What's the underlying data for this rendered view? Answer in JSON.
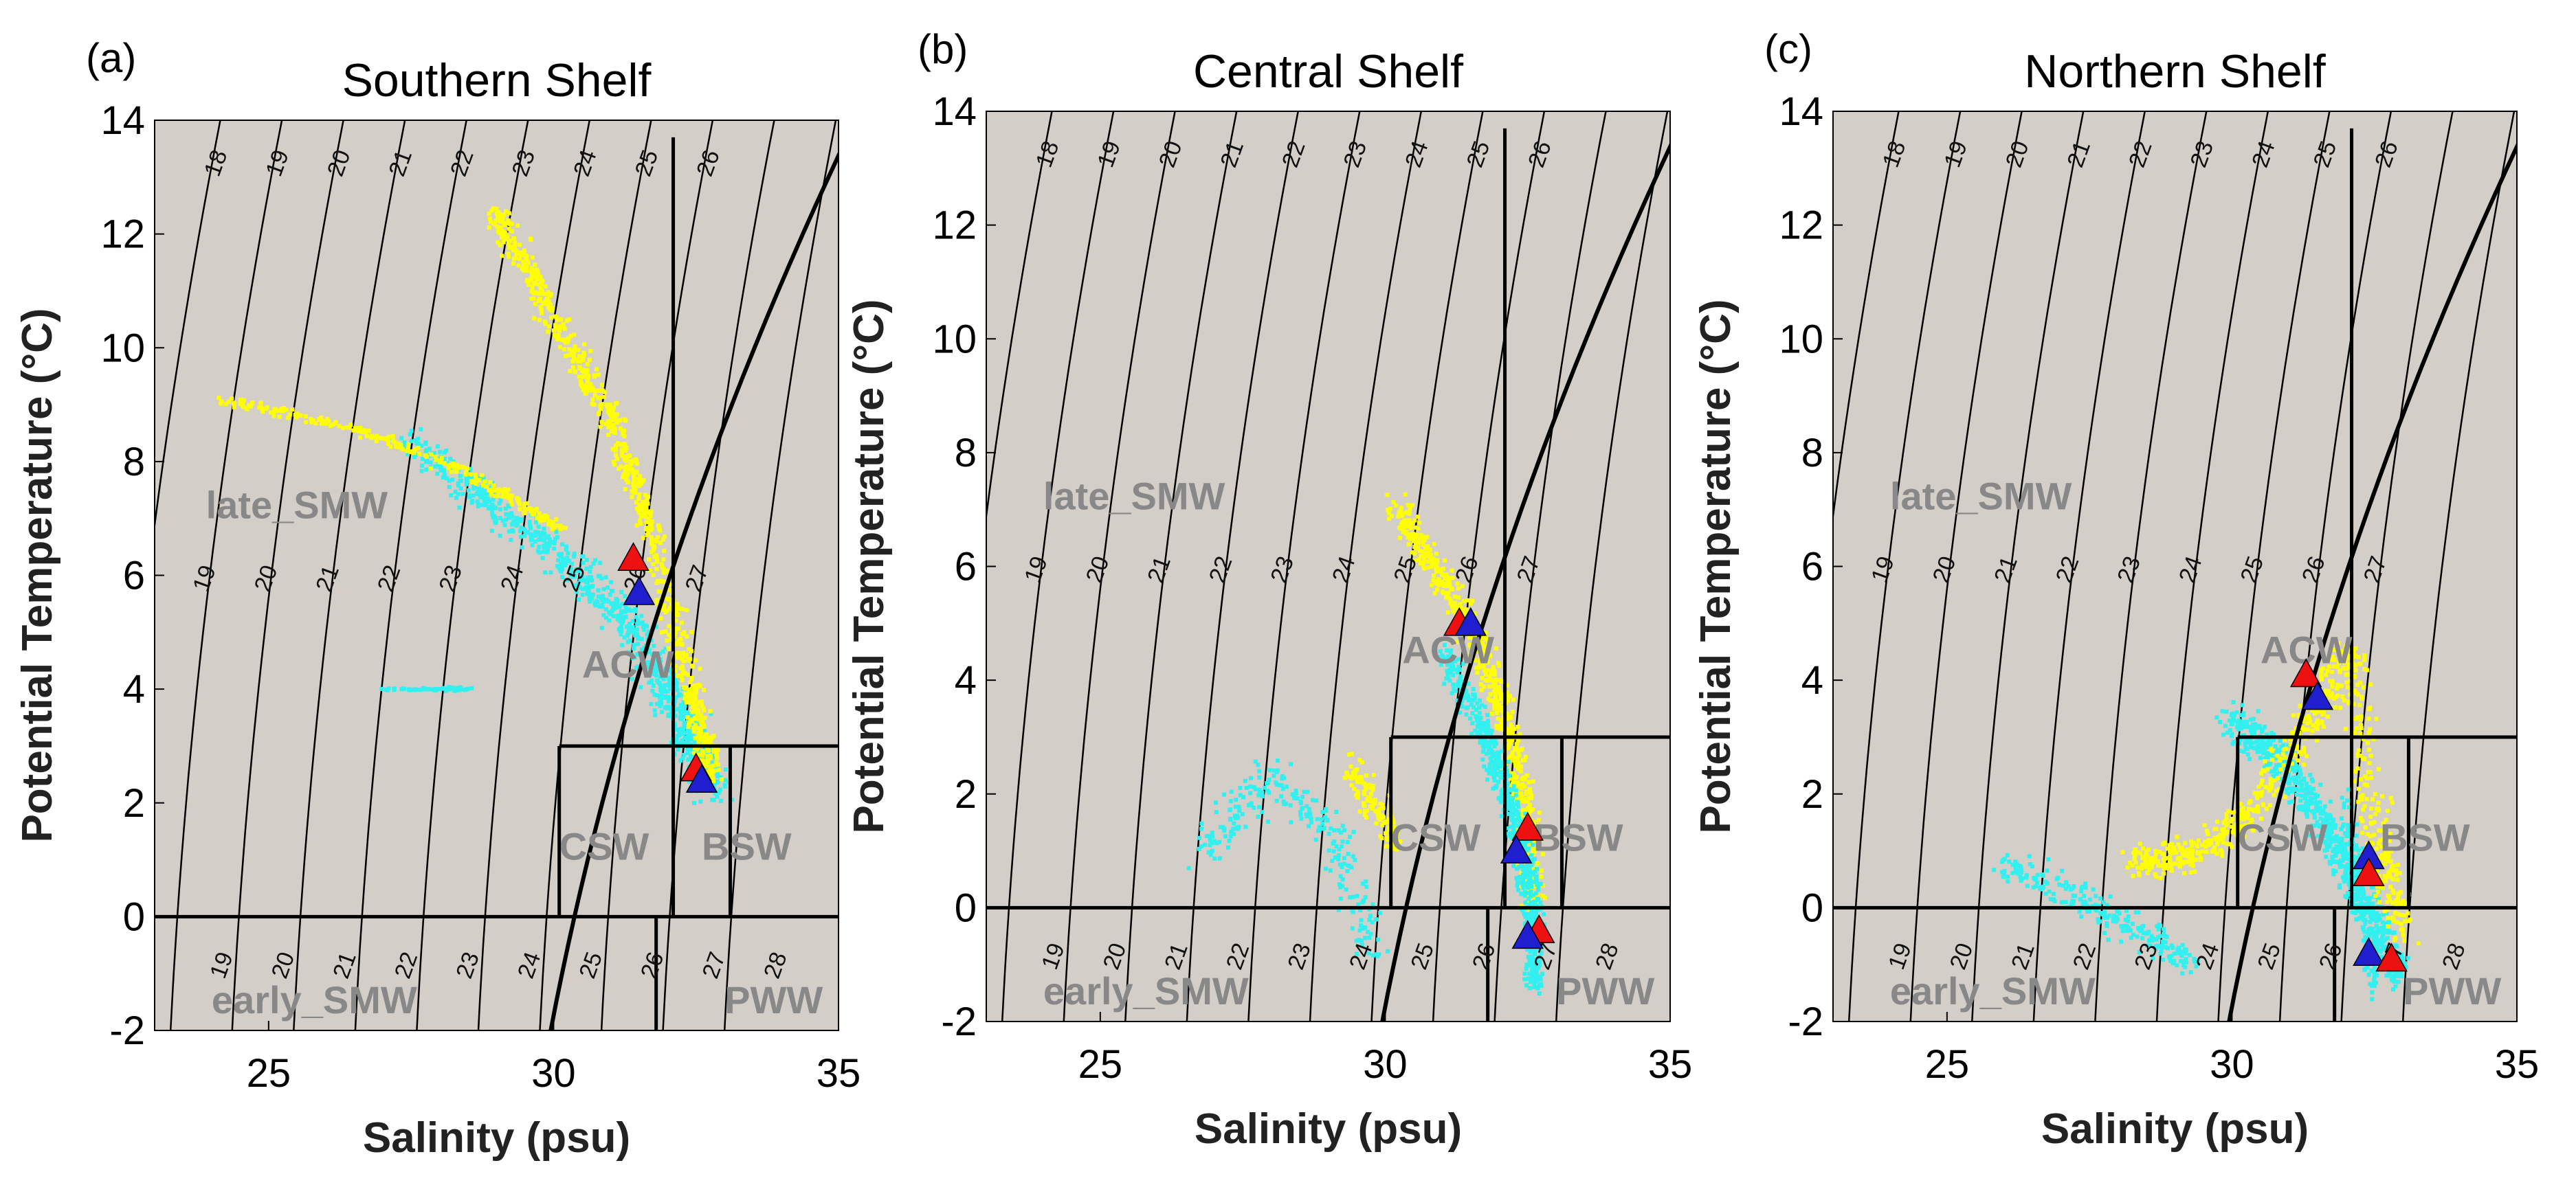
{
  "figure": {
    "background_plot": "#d3cfc8",
    "colors": {
      "profile_a": "#ffff00",
      "profile_b": "#33f0f0",
      "marker_mean_a": "#ee1111",
      "marker_mean_b": "#1f1fcf",
      "isopycnal": "#000000",
      "freezing_line": "#000000",
      "water_mass_label": "#888888"
    }
  },
  "chart_data": [
    {
      "type": "scatter",
      "panel_tag": "(a)",
      "title": "Southern Shelf",
      "xlabel": "Salinity (psu)",
      "ylabel": "Potential Temperature (°C)",
      "xlim": [
        23,
        35
      ],
      "ylim": [
        -2,
        14
      ],
      "xticks": [
        "25",
        "30",
        "35"
      ],
      "yticks": [
        "-2",
        "0",
        "2",
        "4",
        "6",
        "8",
        "10",
        "12",
        "14"
      ],
      "water_mass_labels": [
        {
          "name": "late_SMW",
          "x": 23.9,
          "y": 7.0
        },
        {
          "name": "ACW",
          "x": 30.5,
          "y": 4.2
        },
        {
          "name": "CSW",
          "x": 30.1,
          "y": 1.0
        },
        {
          "name": "BSW",
          "x": 32.6,
          "y": 1.0
        },
        {
          "name": "early_SMW",
          "x": 24.0,
          "y": -1.7
        },
        {
          "name": "PWW",
          "x": 33.0,
          "y": -1.7
        }
      ],
      "markers": [
        {
          "series": "red",
          "x": 31.4,
          "y": 6.3
        },
        {
          "series": "blue",
          "x": 31.5,
          "y": 5.7
        },
        {
          "series": "red",
          "x": 32.5,
          "y": 2.6
        },
        {
          "series": "blue",
          "x": 32.6,
          "y": 2.4
        }
      ],
      "isopycnal_labels_top": [
        "18",
        "19",
        "20",
        "21",
        "22",
        "23",
        "24",
        "25",
        "26"
      ],
      "isopycnal_labels_mid": [
        "19",
        "20",
        "21",
        "22",
        "23",
        "24",
        "25",
        "26",
        "27"
      ],
      "isopycnal_labels_bottom": [
        "19",
        "20",
        "21",
        "22",
        "23",
        "24",
        "25",
        "26",
        "27",
        "28"
      ]
    },
    {
      "type": "scatter",
      "panel_tag": "(b)",
      "title": "Central Shelf",
      "xlabel": "Salinity (psu)",
      "ylabel": "Potential Temperature (°C)",
      "xlim": [
        23,
        35
      ],
      "ylim": [
        -2,
        14
      ],
      "xticks": [
        "25",
        "30",
        "35"
      ],
      "yticks": [
        "-2",
        "0",
        "2",
        "4",
        "6",
        "8",
        "10",
        "12",
        "14"
      ],
      "water_mass_labels": [
        {
          "name": "late_SMW",
          "x": 24.0,
          "y": 7.0
        },
        {
          "name": "ACW",
          "x": 30.3,
          "y": 4.3
        },
        {
          "name": "CSW",
          "x": 30.1,
          "y": 1.0
        },
        {
          "name": "BSW",
          "x": 32.6,
          "y": 1.0
        },
        {
          "name": "early_SMW",
          "x": 24.0,
          "y": -1.7
        },
        {
          "name": "PWW",
          "x": 33.0,
          "y": -1.7
        }
      ],
      "markers": [
        {
          "series": "red",
          "x": 31.3,
          "y": 5.0
        },
        {
          "series": "blue",
          "x": 31.5,
          "y": 5.0
        },
        {
          "series": "red",
          "x": 32.5,
          "y": 1.4
        },
        {
          "series": "blue",
          "x": 32.3,
          "y": 1.0
        },
        {
          "series": "red",
          "x": 32.7,
          "y": -0.4
        },
        {
          "series": "blue",
          "x": 32.5,
          "y": -0.5
        }
      ],
      "isopycnal_labels_top": [
        "18",
        "19",
        "20",
        "21",
        "22",
        "23",
        "24",
        "25",
        "26"
      ],
      "isopycnal_labels_mid": [
        "19",
        "20",
        "21",
        "22",
        "23",
        "24",
        "25",
        "26",
        "27"
      ],
      "isopycnal_labels_bottom": [
        "19",
        "20",
        "21",
        "22",
        "23",
        "24",
        "25",
        "26",
        "27",
        "28"
      ]
    },
    {
      "type": "scatter",
      "panel_tag": "(c)",
      "title": "Northern Shelf",
      "xlabel": "Salinity (psu)",
      "ylabel": "Potential Temperature (°C)",
      "xlim": [
        23,
        35
      ],
      "ylim": [
        -2,
        14
      ],
      "xticks": [
        "25",
        "30",
        "35"
      ],
      "yticks": [
        "-2",
        "0",
        "2",
        "4",
        "6",
        "8",
        "10",
        "12",
        "14"
      ],
      "water_mass_labels": [
        {
          "name": "late_SMW",
          "x": 24.0,
          "y": 7.0
        },
        {
          "name": "ACW",
          "x": 30.5,
          "y": 4.3
        },
        {
          "name": "CSW",
          "x": 30.1,
          "y": 1.0
        },
        {
          "name": "BSW",
          "x": 32.6,
          "y": 1.0
        },
        {
          "name": "early_SMW",
          "x": 24.0,
          "y": -1.7
        },
        {
          "name": "PWW",
          "x": 33.0,
          "y": -1.7
        }
      ],
      "markers": [
        {
          "series": "red",
          "x": 31.3,
          "y": 4.1
        },
        {
          "series": "blue",
          "x": 31.5,
          "y": 3.7
        },
        {
          "series": "blue",
          "x": 32.4,
          "y": 0.9
        },
        {
          "series": "red",
          "x": 32.4,
          "y": 0.6
        },
        {
          "series": "blue",
          "x": 32.4,
          "y": -0.8
        },
        {
          "series": "red",
          "x": 32.8,
          "y": -0.9
        }
      ],
      "isopycnal_labels_top": [
        "18",
        "19",
        "20",
        "21",
        "22",
        "23",
        "24",
        "25",
        "26"
      ],
      "isopycnal_labels_mid": [
        "19",
        "20",
        "21",
        "22",
        "23",
        "24",
        "25",
        "26",
        "27"
      ],
      "isopycnal_labels_bottom": [
        "19",
        "20",
        "21",
        "22",
        "23",
        "24",
        "25",
        "26",
        "27",
        "28"
      ]
    }
  ]
}
